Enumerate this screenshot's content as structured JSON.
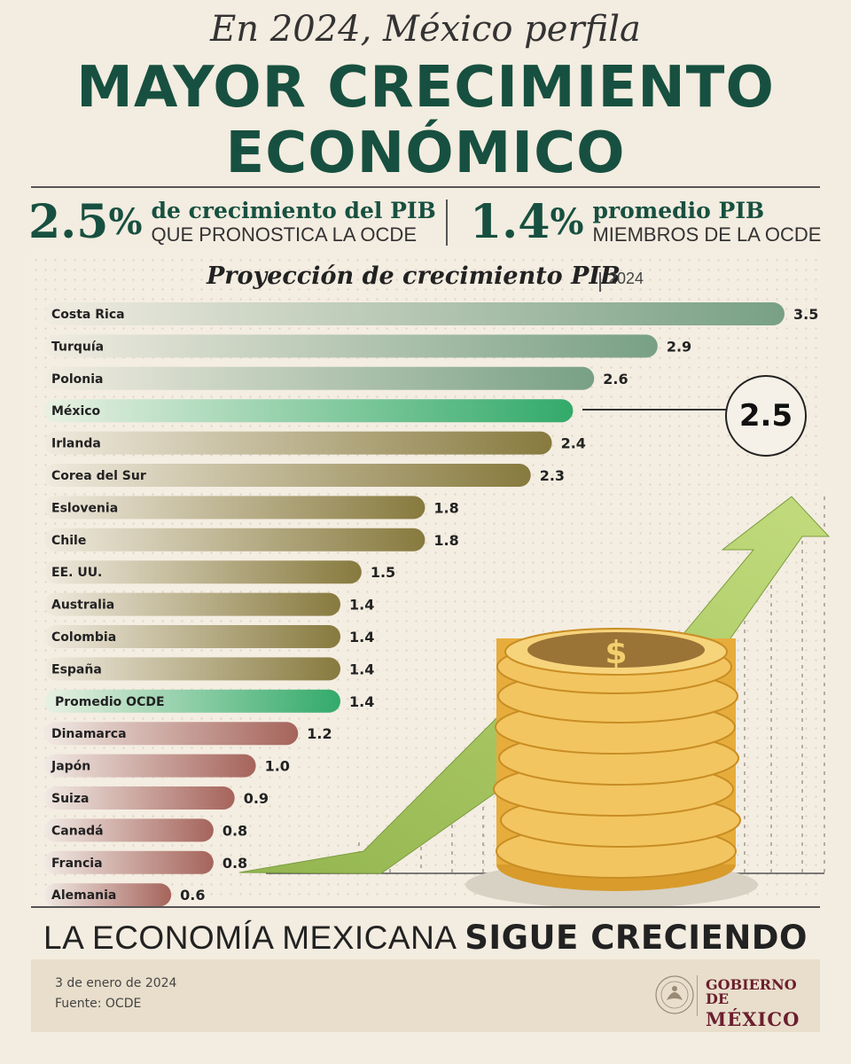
{
  "header": {
    "subtitle": "En 2024, México perfila",
    "title_line1": "MAYOR CRECIMIENTO",
    "title_line2": "ECONÓMICO"
  },
  "stats": {
    "left": {
      "value": "2.5",
      "unit": "%",
      "line1": "de crecimiento del PIB",
      "line2": "QUE PRONOSTICA LA OCDE"
    },
    "right": {
      "value": "1.4",
      "unit": "%",
      "line1": "promedio PIB",
      "line2": "MIEMBROS DE LA OCDE"
    }
  },
  "chart_title": "Proyección de crecimiento PIB",
  "chart_year": "2024",
  "mexico_badge": "2.5",
  "tagline": {
    "normal": "LA ECONOMÍA MEXICANA ",
    "bold": "SIGUE CRECIENDO"
  },
  "footer": {
    "date": "3 de enero de 2024",
    "source": "Fuente: OCDE",
    "logo_line1": "GOBIERNO DE",
    "logo_line2": "MÉXICO",
    "seal_text": "ESTADOS UNIDOS MEXICANOS"
  },
  "illustration": {
    "coin_symbol": "$"
  },
  "colors": {
    "brand_green": "#175040",
    "bar_green": "#7ea58a",
    "bar_highlight": "#3aae72",
    "bar_olive": "#8a7d45",
    "bar_rose": "#a86a60",
    "coin_gold": "#e9b84e",
    "arrow_green": "#b3d06a",
    "logo_maroon": "#6b1e2e"
  },
  "chart_data": {
    "type": "bar",
    "orientation": "horizontal",
    "title": "Proyección de crecimiento PIB",
    "categories": [
      "Costa Rica",
      "Turquía",
      "Polonia",
      "México",
      "Irlanda",
      "Corea del Sur",
      "Eslovenia",
      "Chile",
      "EE. UU.",
      "Australia",
      "Colombia",
      "España",
      "Promedio OCDE",
      "Dinamarca",
      "Japón",
      "Suiza",
      "Canadá",
      "Francia",
      "Alemania"
    ],
    "values": [
      3.5,
      2.9,
      2.6,
      2.5,
      2.4,
      2.3,
      1.8,
      1.8,
      1.5,
      1.4,
      1.4,
      1.4,
      1.4,
      1.2,
      1.0,
      0.9,
      0.8,
      0.8,
      0.6
    ],
    "value_labels": [
      "3.5",
      "2.9",
      "2.6",
      "",
      "2.4",
      "2.3",
      "1.8",
      "1.8",
      "1.5",
      "1.4",
      "1.4",
      "1.4",
      "1.4",
      "1.2",
      "1.0",
      "0.9",
      "0.8",
      "0.8",
      "0.6"
    ],
    "bar_colors": [
      "green",
      "green",
      "green",
      "highlight",
      "olive",
      "olive",
      "olive",
      "olive",
      "olive",
      "olive",
      "olive",
      "olive",
      "highlight",
      "rose",
      "rose",
      "rose",
      "rose",
      "rose",
      "rose"
    ],
    "highlight_rows": [
      "México",
      "Promedio OCDE"
    ],
    "xlim": [
      0,
      3.5
    ],
    "grid": false,
    "legend": "none"
  }
}
